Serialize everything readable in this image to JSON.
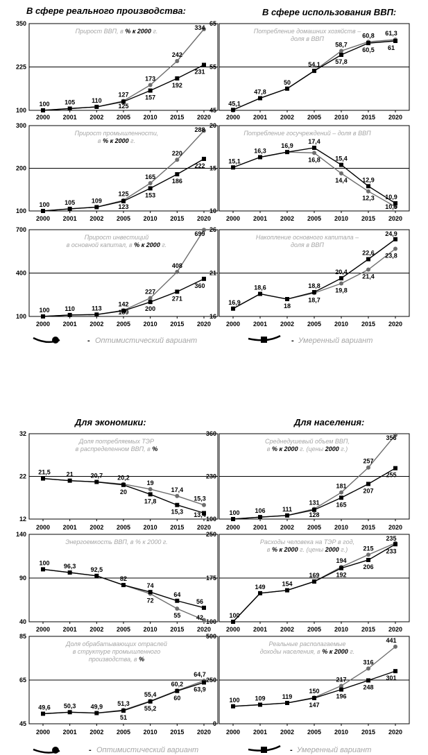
{
  "sections": [
    {
      "title": "В сфере реального производства:"
    },
    {
      "title": "В сфере использования ВВП:"
    },
    {
      "title": "Для экономики:"
    },
    {
      "title": "Для населения:"
    }
  ],
  "legend": {
    "optimistic": "Оптимистический вариант",
    "moderate": "Умеренный вариант",
    "dash": "-"
  },
  "colors": {
    "optimistic": "#6e6e6e",
    "moderate": "#000000",
    "note": "#a6a6a6"
  },
  "chart_data": [
    {
      "type": "line",
      "categories": [
        "2000",
        "2001",
        "2002",
        "2005",
        "2010",
        "2015",
        "2020"
      ],
      "ylim": [
        100,
        350
      ],
      "yticks": [
        "100",
        "225",
        "350"
      ],
      "note": [
        [
          "Прирост ВВП, в ",
          "% к 2000",
          " г."
        ]
      ],
      "series": [
        {
          "name": "Оптимистический вариант",
          "values": [
            100,
            105,
            110,
            127,
            173,
            242,
            334
          ]
        },
        {
          "name": "Умеренный вариант",
          "values": [
            100,
            105,
            110,
            125,
            157,
            192,
            231
          ]
        }
      ]
    },
    {
      "type": "line",
      "categories": [
        "2000",
        "2001",
        "2002",
        "2005",
        "2010",
        "2015",
        "2020"
      ],
      "ylim": [
        45,
        65
      ],
      "yticks": [
        "45",
        "55",
        "65"
      ],
      "note": [
        [
          "Потребление домашних хозяйств –"
        ],
        [
          "доля в ВВП"
        ]
      ],
      "series": [
        {
          "name": "Оптимистический вариант",
          "values": [
            45.1,
            47.8,
            50,
            54.1,
            58.7,
            60.8,
            61.3
          ]
        },
        {
          "name": "Умеренный вариант",
          "values": [
            45.1,
            47.8,
            50,
            54.1,
            57.8,
            60.5,
            61
          ]
        }
      ]
    },
    {
      "type": "line",
      "categories": [
        "2000",
        "2001",
        "2002",
        "2005",
        "2010",
        "2015",
        "2020"
      ],
      "ylim": [
        100,
        300
      ],
      "yticks": [
        "100",
        "200",
        "300"
      ],
      "note": [
        [
          "Прирост промышленности,"
        ],
        [
          "в ",
          "% к 2000",
          " г."
        ]
      ],
      "series": [
        {
          "name": "Оптимистический вариант",
          "values": [
            100,
            105,
            109,
            125,
            165,
            220,
            288
          ]
        },
        {
          "name": "Умеренный вариант",
          "values": [
            100,
            105,
            109,
            123,
            153,
            186,
            222
          ]
        }
      ]
    },
    {
      "type": "line",
      "categories": [
        "2000",
        "2001",
        "2002",
        "2005",
        "2010",
        "2015",
        "2020"
      ],
      "ylim": [
        10,
        20
      ],
      "yticks": [
        "10",
        "15",
        "20"
      ],
      "note": [
        [
          "Потребление госучреждений – доля в ВВП"
        ]
      ],
      "series": [
        {
          "name": "Оптимистический вариант",
          "values": [
            15.1,
            16.3,
            16.9,
            16.8,
            14.4,
            12.3,
            10.5
          ]
        },
        {
          "name": "Умеренный вариант",
          "values": [
            15.1,
            16.3,
            16.9,
            17.4,
            15.4,
            12.9,
            10.9
          ]
        }
      ]
    },
    {
      "type": "line",
      "categories": [
        "2000",
        "2001",
        "2002",
        "2005",
        "2010",
        "2015",
        "2020"
      ],
      "ylim": [
        100,
        700
      ],
      "yticks": [
        "100",
        "400",
        "700"
      ],
      "note": [
        [
          "Прирост инвестиций"
        ],
        [
          "в основной капитал, в ",
          "% к 2000",
          " г."
        ]
      ],
      "series": [
        {
          "name": "Оптимистический вариант",
          "values": [
            100,
            110,
            113,
            142,
            227,
            408,
            699
          ]
        },
        {
          "name": "Умеренный вариант",
          "values": [
            100,
            110,
            113,
            139,
            200,
            271,
            360
          ]
        }
      ]
    },
    {
      "type": "line",
      "categories": [
        "2000",
        "2001",
        "2002",
        "2005",
        "2010",
        "2015",
        "2020"
      ],
      "ylim": [
        16,
        26
      ],
      "yticks": [
        "16",
        "21",
        "26"
      ],
      "note": [
        [
          "Накопление основного капитала –"
        ],
        [
          "доля в ВВП"
        ]
      ],
      "series": [
        {
          "name": "Оптимистический вариант",
          "values": [
            16.9,
            18.6,
            18,
            18.7,
            19.8,
            21.4,
            23.8
          ]
        },
        {
          "name": "Умеренный вариант",
          "values": [
            16.9,
            18.6,
            18,
            18.8,
            20.4,
            22.6,
            24.9
          ]
        }
      ]
    },
    {
      "type": "line",
      "categories": [
        "2000",
        "2001",
        "2002",
        "2005",
        "2010",
        "2015",
        "2020"
      ],
      "ylim": [
        12,
        32
      ],
      "yticks": [
        "12",
        "22",
        "32"
      ],
      "note": [
        [
          "Доля потребляемых ТЭР"
        ],
        [
          "в распределенном ВВП, в ",
          "%"
        ]
      ],
      "series": [
        {
          "name": "Оптимистический вариант",
          "values": [
            21.5,
            21,
            20.7,
            20.2,
            19,
            17.4,
            15.3
          ]
        },
        {
          "name": "Умеренный вариант",
          "values": [
            21.5,
            21,
            20.7,
            20,
            17.8,
            15.3,
            13.4
          ]
        }
      ]
    },
    {
      "type": "line",
      "categories": [
        "2000",
        "2001",
        "2002",
        "2005",
        "2010",
        "2015",
        "2020"
      ],
      "ylim": [
        100,
        360
      ],
      "yticks": [
        "100",
        "230",
        "360"
      ],
      "note": [
        [
          "Среднедушевый объем ВВП,"
        ],
        [
          "в ",
          "% к 2000",
          " г. (цены ",
          "2000",
          " г.)"
        ]
      ],
      "series": [
        {
          "name": "Оптимистический вариант",
          "values": [
            100,
            106,
            111,
            131,
            181,
            257,
            356
          ]
        },
        {
          "name": "Умеренный вариант",
          "values": [
            100,
            106,
            111,
            128,
            165,
            207,
            255
          ]
        }
      ]
    },
    {
      "type": "line",
      "categories": [
        "2000",
        "2001",
        "2002",
        "2005",
        "2010",
        "2015",
        "2020"
      ],
      "ylim": [
        40,
        140
      ],
      "yticks": [
        "40",
        "90",
        "140"
      ],
      "note": [
        [
          "Энергоемкость ВВП, в % к 2000 г."
        ]
      ],
      "series": [
        {
          "name": "Оптимистический вариант",
          "values": [
            100,
            96.3,
            92.5,
            82,
            72,
            55,
            42
          ]
        },
        {
          "name": "Умеренный вариант",
          "values": [
            100,
            96.3,
            92.5,
            82,
            74,
            64,
            56
          ]
        }
      ]
    },
    {
      "type": "line",
      "categories": [
        "2000",
        "2001",
        "2002",
        "2005",
        "2010",
        "2015",
        "2020"
      ],
      "ylim": [
        100,
        250
      ],
      "yticks": [
        "100",
        "175",
        "250"
      ],
      "note": [
        [
          "Расходы человека на ТЭР в год,"
        ],
        [
          "в ",
          "% к 2000",
          " г. (цены ",
          "2000",
          " г.)"
        ]
      ],
      "series": [
        {
          "name": "Оптимистический вариант",
          "values": [
            100,
            149,
            154,
            169,
            194,
            215,
            235
          ]
        },
        {
          "name": "Умеренный вариант",
          "values": [
            100,
            149,
            154,
            169,
            192,
            206,
            233
          ]
        }
      ]
    },
    {
      "type": "line",
      "categories": [
        "2000",
        "2001",
        "2002",
        "2005",
        "2010",
        "2015",
        "2020"
      ],
      "ylim": [
        45,
        85
      ],
      "yticks": [
        "45",
        "65",
        "85"
      ],
      "note": [
        [
          "Доля обрабатывающих отраслей"
        ],
        [
          "в структуре промышленного"
        ],
        [
          "производства, в ",
          "%"
        ]
      ],
      "series": [
        {
          "name": "Оптимистический вариант",
          "values": [
            49.6,
            50.3,
            49.9,
            51.3,
            55.4,
            60.2,
            64.7
          ]
        },
        {
          "name": "Умеренный вариант",
          "values": [
            49.6,
            50.3,
            49.9,
            51,
            55.2,
            60,
            63.9
          ]
        }
      ]
    },
    {
      "type": "line",
      "categories": [
        "2000",
        "2001",
        "2002",
        "2005",
        "2010",
        "2015",
        "2020"
      ],
      "ylim": [
        0,
        500
      ],
      "yticks": [
        "0",
        "250",
        "500"
      ],
      "note": [
        [
          "Реальные располагаемые"
        ],
        [
          "доходы населения, в ",
          "% к 2000",
          " г."
        ]
      ],
      "series": [
        {
          "name": "Оптимистический вариант",
          "values": [
            100,
            109,
            119,
            150,
            217,
            316,
            441
          ]
        },
        {
          "name": "Умеренный вариант",
          "values": [
            100,
            109,
            119,
            147,
            196,
            248,
            301
          ]
        }
      ]
    }
  ]
}
